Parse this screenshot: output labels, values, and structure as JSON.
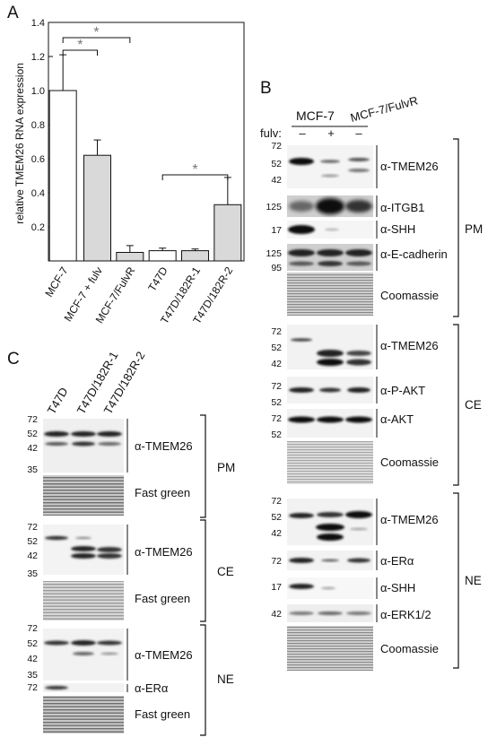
{
  "panels": {
    "A": {
      "letter": "A",
      "chart_data": {
        "type": "bar",
        "ylabel": "relative TMEM26 RNA expression",
        "ylim": [
          0,
          1.4
        ],
        "yticks": [
          "0.2",
          "0.4",
          "0.6",
          "0.8",
          "1.0",
          "1.2",
          "1.4"
        ],
        "categories": [
          "MCF-7",
          "MCF-7 + fulv",
          "MCF-7/FulvR",
          "T47D",
          "T47D/182R-1",
          "T47D/182R-2"
        ],
        "values": [
          1.0,
          0.62,
          0.05,
          0.06,
          0.06,
          0.33
        ],
        "errors": [
          0.21,
          0.09,
          0.04,
          0.015,
          0.01,
          0.16
        ],
        "bar_colors": [
          "#ffffff",
          "#d9d9d9",
          "#d9d9d9",
          "#ffffff",
          "#d9d9d9",
          "#d9d9d9"
        ],
        "significance": [
          "*",
          "*",
          "*"
        ]
      }
    },
    "B": {
      "letter": "B",
      "header_mcf7": "MCF-7",
      "header_fulvr": "MCF-7/FulvR",
      "fulv_label": "fulv:",
      "fulv_signs": [
        "–",
        "+",
        "–"
      ],
      "fractions": [
        "PM",
        "CE",
        "NE"
      ],
      "blots": [
        {
          "antibody": "α-TMEM26",
          "mw": [
            "72",
            "52",
            "42"
          ]
        },
        {
          "antibody": "α-ITGB1",
          "mw": [
            "125"
          ]
        },
        {
          "antibody": "α-SHH",
          "mw": [
            "17"
          ]
        },
        {
          "antibody": "α-E-cadherin",
          "mw": [
            "125",
            "95"
          ]
        },
        {
          "antibody": "Coomassie",
          "mw": []
        },
        {
          "antibody": "α-TMEM26",
          "mw": [
            "72",
            "52",
            "42"
          ]
        },
        {
          "antibody": "α-P-AKT",
          "mw": [
            "72",
            "52"
          ]
        },
        {
          "antibody": "α-AKT",
          "mw": [
            "72",
            "52"
          ]
        },
        {
          "antibody": "Coomassie",
          "mw": []
        },
        {
          "antibody": "α-TMEM26",
          "mw": [
            "72",
            "52",
            "42"
          ]
        },
        {
          "antibody": "α-ERα",
          "mw": [
            "72"
          ]
        },
        {
          "antibody": "α-SHH",
          "mw": [
            "17"
          ]
        },
        {
          "antibody": "α-ERK1/2",
          "mw": [
            "42"
          ]
        },
        {
          "antibody": "Coomassie",
          "mw": []
        }
      ]
    },
    "C": {
      "letter": "C",
      "lanes": [
        "T47D",
        "T47D/182R-1",
        "T47D/182R-2"
      ],
      "fractions": [
        "PM",
        "CE",
        "NE"
      ],
      "blots": [
        {
          "antibody": "α-TMEM26",
          "mw": [
            "72",
            "52",
            "42",
            "35"
          ]
        },
        {
          "antibody": "Fast green",
          "mw": []
        },
        {
          "antibody": "α-TMEM26",
          "mw": [
            "72",
            "52",
            "42",
            "35"
          ]
        },
        {
          "antibody": "Fast green",
          "mw": []
        },
        {
          "antibody": "α-TMEM26",
          "mw": [
            "72",
            "52",
            "42",
            "35"
          ]
        },
        {
          "antibody": "α-ERα",
          "mw": [
            "72"
          ]
        },
        {
          "antibody": "Fast green",
          "mw": []
        }
      ]
    }
  }
}
